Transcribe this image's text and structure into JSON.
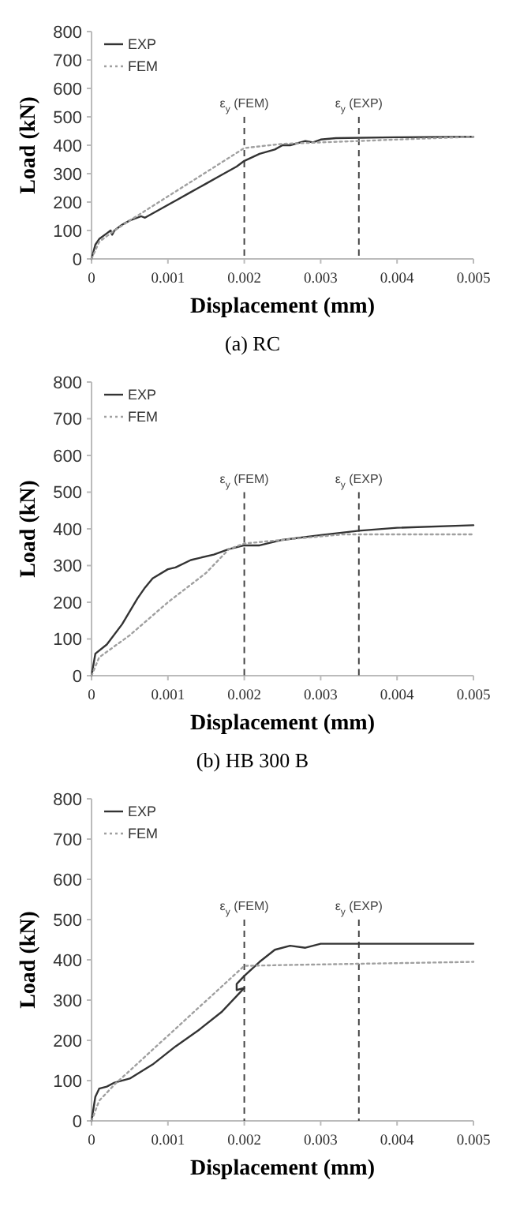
{
  "chart_data": [
    {
      "type": "line",
      "xlabel": "Displacement (mm)",
      "ylabel": "Load (kN)",
      "annotations": [
        "(a) RC"
      ],
      "xlim": [
        0,
        0.005
      ],
      "xticks": [
        0,
        0.001,
        0.002,
        0.003,
        0.004,
        0.005
      ],
      "ylim": [
        0,
        800
      ],
      "yticks": [
        0,
        100,
        200,
        300,
        400,
        500,
        600,
        700,
        800
      ],
      "grid": false,
      "legend": "top left",
      "marker": "none",
      "ref_lines": [
        {
          "axis": "x",
          "value": 0.002,
          "label": "ε$_{y}$ (FEM)",
          "line_style": "dashed",
          "color": "#444444"
        },
        {
          "axis": "x",
          "value": 0.0035,
          "label": "ε$_{y}$ (EXP)",
          "line_style": "dashed",
          "color": "#444444"
        }
      ],
      "series": [
        {
          "name": "EXP",
          "color": "#333333",
          "line_style": "solid",
          "x": [
            0,
            5e-05,
            0.0001,
            0.0002,
            0.00025,
            0.00027,
            0.0003,
            0.0004,
            0.0005,
            0.00065,
            0.0007,
            0.0009,
            0.0011,
            0.0013,
            0.0015,
            0.0017,
            0.0019,
            0.002,
            0.0022,
            0.0024,
            0.0025,
            0.0026,
            0.0028,
            0.0029,
            0.003,
            0.0032,
            0.004,
            0.005
          ],
          "values": [
            0,
            50,
            70,
            90,
            100,
            85,
            100,
            120,
            135,
            150,
            145,
            175,
            205,
            235,
            265,
            295,
            325,
            345,
            370,
            385,
            400,
            400,
            415,
            410,
            420,
            425,
            428,
            430
          ]
        },
        {
          "name": "FEM",
          "color": "#a0a0a0",
          "line_style": "dotted",
          "x": [
            0,
            0.0001,
            0.0003,
            0.0005,
            0.002,
            0.0025,
            0.0035,
            0.005
          ],
          "values": [
            0,
            60,
            100,
            135,
            390,
            405,
            415,
            430
          ]
        }
      ]
    },
    {
      "type": "line",
      "xlabel": "Displacement (mm)",
      "ylabel": "Load (kN)",
      "annotations": [
        "(b) HB 300 B"
      ],
      "xlim": [
        0,
        0.005
      ],
      "xticks": [
        0,
        0.001,
        0.002,
        0.003,
        0.004,
        0.005
      ],
      "ylim": [
        0,
        800
      ],
      "yticks": [
        0,
        100,
        200,
        300,
        400,
        500,
        600,
        700,
        800
      ],
      "grid": false,
      "legend": "top left",
      "marker": "none",
      "ref_lines": [
        {
          "axis": "x",
          "value": 0.002,
          "label": "ε$_{y}$ (FEM)",
          "line_style": "dashed",
          "color": "#444444"
        },
        {
          "axis": "x",
          "value": 0.0035,
          "label": "ε$_{y}$ (EXP)",
          "line_style": "dashed",
          "color": "#444444"
        }
      ],
      "series": [
        {
          "name": "EXP",
          "color": "#333333",
          "line_style": "solid",
          "x": [
            0,
            5e-05,
            0.0002,
            0.0004,
            0.0006,
            0.0007,
            0.0008,
            0.001,
            0.0011,
            0.0013,
            0.0016,
            0.0018,
            0.002,
            0.0022,
            0.0025,
            0.003,
            0.0035,
            0.004,
            0.005
          ],
          "values": [
            0,
            60,
            85,
            140,
            210,
            240,
            265,
            290,
            295,
            315,
            330,
            345,
            355,
            355,
            370,
            383,
            395,
            403,
            410
          ]
        },
        {
          "name": "FEM",
          "color": "#a0a0a0",
          "line_style": "dotted",
          "x": [
            0,
            0.0001,
            0.0005,
            0.001,
            0.0015,
            0.0018,
            0.002,
            0.0025,
            0.0033,
            0.005
          ],
          "values": [
            0,
            50,
            110,
            200,
            280,
            345,
            360,
            370,
            385,
            385
          ]
        }
      ]
    },
    {
      "type": "line",
      "xlabel": "Displacement (mm)",
      "ylabel": "Load (kN)",
      "xlim": [
        0,
        0.005
      ],
      "xticks": [
        0,
        0.001,
        0.002,
        0.003,
        0.004,
        0.005
      ],
      "ylim": [
        0,
        800
      ],
      "yticks": [
        0,
        100,
        200,
        300,
        400,
        500,
        600,
        700,
        800
      ],
      "grid": false,
      "legend": "top left",
      "marker": "none",
      "ref_lines": [
        {
          "axis": "x",
          "value": 0.002,
          "label": "ε$_{y}$ (FEM)",
          "line_style": "dashed",
          "color": "#444444"
        },
        {
          "axis": "x",
          "value": 0.0035,
          "label": "ε$_{y}$ (EXP)",
          "line_style": "dashed",
          "color": "#444444"
        }
      ],
      "series": [
        {
          "name": "EXP",
          "color": "#333333",
          "line_style": "solid",
          "x": [
            0,
            5e-05,
            0.0001,
            0.0002,
            0.0003,
            0.0005,
            0.0008,
            0.0011,
            0.0014,
            0.0017,
            0.0019,
            0.002,
            0.0019,
            0.0019,
            0.002,
            0.0022,
            0.0024,
            0.0026,
            0.0028,
            0.003,
            0.005
          ],
          "values": [
            0,
            60,
            80,
            85,
            95,
            105,
            140,
            185,
            225,
            270,
            310,
            330,
            325,
            340,
            360,
            395,
            425,
            435,
            430,
            440,
            440
          ]
        },
        {
          "name": "FEM",
          "color": "#a0a0a0",
          "line_style": "dotted",
          "x": [
            0,
            0.0001,
            0.0003,
            0.002,
            0.0025,
            0.005
          ],
          "values": [
            0,
            50,
            90,
            385,
            387,
            395
          ]
        }
      ]
    }
  ]
}
